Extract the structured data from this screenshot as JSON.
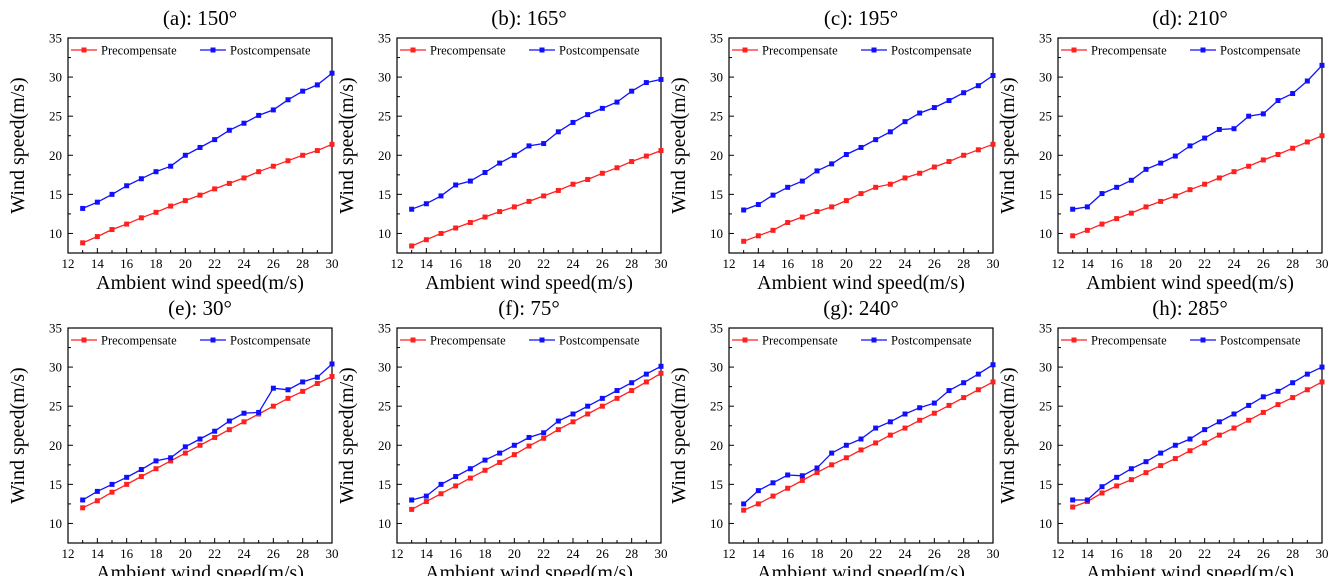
{
  "figure": {
    "colors": {
      "pre": "#ff2020",
      "post": "#1010ff",
      "axis": "#000000",
      "background": "#ffffff"
    }
  },
  "chart_data": [
    {
      "type": "line",
      "title": "(a): 150°",
      "xlabel": "Ambient wind speed(m/s)",
      "ylabel": "Wind speed(m/s)",
      "xlim": [
        12,
        30
      ],
      "ylim": [
        7.5,
        35
      ],
      "xticks": [
        12,
        14,
        16,
        18,
        20,
        22,
        24,
        26,
        28,
        30
      ],
      "yticks": [
        10,
        15,
        20,
        25,
        30,
        35
      ],
      "legend": "top",
      "x": [
        13,
        14,
        15,
        16,
        17,
        18,
        19,
        20,
        21,
        22,
        23,
        24,
        25,
        26,
        27,
        28,
        29,
        30
      ],
      "series": [
        {
          "name": "Precompensate",
          "color": "#ff2020",
          "values": [
            8.8,
            9.6,
            10.5,
            11.2,
            12,
            12.7,
            13.5,
            14.2,
            14.9,
            15.7,
            16.4,
            17.1,
            17.9,
            18.6,
            19.3,
            20,
            20.6,
            21.4
          ]
        },
        {
          "name": "Postcompensate",
          "color": "#1010ff",
          "values": [
            13.2,
            14,
            15,
            16.1,
            17,
            17.9,
            18.6,
            20,
            21,
            22,
            23.2,
            24.1,
            25.1,
            25.8,
            27.1,
            28.2,
            29,
            30.5
          ]
        }
      ]
    },
    {
      "type": "line",
      "title": "(b): 165°",
      "xlabel": "Ambient wind speed(m/s)",
      "ylabel": "Wind speed(m/s)",
      "xlim": [
        12,
        30
      ],
      "ylim": [
        7.5,
        35
      ],
      "xticks": [
        12,
        14,
        16,
        18,
        20,
        22,
        24,
        26,
        28,
        30
      ],
      "yticks": [
        10,
        15,
        20,
        25,
        30,
        35
      ],
      "legend": "top",
      "x": [
        13,
        14,
        15,
        16,
        17,
        18,
        19,
        20,
        21,
        22,
        23,
        24,
        25,
        26,
        27,
        28,
        29,
        30
      ],
      "series": [
        {
          "name": "Precompensate",
          "color": "#ff2020",
          "values": [
            8.4,
            9.2,
            10,
            10.7,
            11.4,
            12.1,
            12.8,
            13.4,
            14.1,
            14.8,
            15.5,
            16.3,
            16.9,
            17.7,
            18.4,
            19.2,
            19.9,
            20.6
          ]
        },
        {
          "name": "Postcompensate",
          "color": "#1010ff",
          "values": [
            13.1,
            13.8,
            14.8,
            16.2,
            16.7,
            17.8,
            19,
            20,
            21.2,
            21.5,
            23,
            24.2,
            25.2,
            26,
            26.8,
            28.2,
            29.3,
            29.7
          ]
        }
      ]
    },
    {
      "type": "line",
      "title": "(c): 195°",
      "xlabel": "Ambient wind speed(m/s)",
      "ylabel": "Wind speed(m/s)",
      "xlim": [
        12,
        30
      ],
      "ylim": [
        7.5,
        35
      ],
      "xticks": [
        12,
        14,
        16,
        18,
        20,
        22,
        24,
        26,
        28,
        30
      ],
      "yticks": [
        10,
        15,
        20,
        25,
        30,
        35
      ],
      "legend": "top",
      "x": [
        13,
        14,
        15,
        16,
        17,
        18,
        19,
        20,
        21,
        22,
        23,
        24,
        25,
        26,
        27,
        28,
        29,
        30
      ],
      "series": [
        {
          "name": "Precompensate",
          "color": "#ff2020",
          "values": [
            9,
            9.7,
            10.4,
            11.4,
            12.1,
            12.8,
            13.4,
            14.2,
            15.1,
            15.9,
            16.3,
            17.1,
            17.7,
            18.5,
            19.2,
            20,
            20.7,
            21.4
          ]
        },
        {
          "name": "Postcompensate",
          "color": "#1010ff",
          "values": [
            13,
            13.7,
            14.9,
            15.9,
            16.7,
            18,
            18.9,
            20.1,
            21,
            22,
            23,
            24.3,
            25.4,
            26.1,
            27,
            28,
            28.9,
            30.2
          ]
        }
      ]
    },
    {
      "type": "line",
      "title": "(d): 210°",
      "xlabel": "Ambient wind speed(m/s)",
      "ylabel": "Wind speed(m/s)",
      "xlim": [
        12,
        30
      ],
      "ylim": [
        7.5,
        35
      ],
      "xticks": [
        12,
        14,
        16,
        18,
        20,
        22,
        24,
        26,
        28,
        30
      ],
      "yticks": [
        10,
        15,
        20,
        25,
        30,
        35
      ],
      "legend": "top",
      "x": [
        13,
        14,
        15,
        16,
        17,
        18,
        19,
        20,
        21,
        22,
        23,
        24,
        25,
        26,
        27,
        28,
        29,
        30
      ],
      "series": [
        {
          "name": "Precompensate",
          "color": "#ff2020",
          "values": [
            9.7,
            10.4,
            11.2,
            11.9,
            12.6,
            13.4,
            14.1,
            14.8,
            15.6,
            16.3,
            17.1,
            17.9,
            18.6,
            19.4,
            20.1,
            20.9,
            21.7,
            22.5
          ]
        },
        {
          "name": "Postcompensate",
          "color": "#1010ff",
          "values": [
            13.1,
            13.4,
            15.1,
            15.9,
            16.8,
            18.2,
            19,
            19.9,
            21.2,
            22.2,
            23.3,
            23.4,
            25,
            25.3,
            27,
            27.9,
            29.5,
            31.5
          ]
        }
      ]
    },
    {
      "type": "line",
      "title": "(e): 30°",
      "xlabel": "Ambient wind speed(m/s)",
      "ylabel": "Wind speed(m/s)",
      "xlim": [
        12,
        30
      ],
      "ylim": [
        7.5,
        35
      ],
      "xticks": [
        12,
        14,
        16,
        18,
        20,
        22,
        24,
        26,
        28,
        30
      ],
      "yticks": [
        10,
        15,
        20,
        25,
        30,
        35
      ],
      "legend": "top",
      "x": [
        13,
        14,
        15,
        16,
        17,
        18,
        19,
        20,
        21,
        22,
        23,
        24,
        25,
        26,
        27,
        28,
        29,
        30
      ],
      "series": [
        {
          "name": "Precompensate",
          "color": "#ff2020",
          "values": [
            12,
            12.9,
            14,
            15,
            16,
            17,
            18,
            19,
            20,
            21,
            22,
            23,
            24,
            25,
            26,
            26.9,
            27.9,
            28.8
          ]
        },
        {
          "name": "Postcompensate",
          "color": "#1010ff",
          "values": [
            13,
            14.1,
            15,
            15.9,
            16.9,
            18,
            18.4,
            19.8,
            20.8,
            21.8,
            23.1,
            24.1,
            24.2,
            27.3,
            27.1,
            28.1,
            28.7,
            30.4
          ]
        }
      ]
    },
    {
      "type": "line",
      "title": "(f): 75°",
      "xlabel": "Ambient wind speed(m/s)",
      "ylabel": "Wind speed(m/s)",
      "xlim": [
        12,
        30
      ],
      "ylim": [
        7.5,
        35
      ],
      "xticks": [
        12,
        14,
        16,
        18,
        20,
        22,
        24,
        26,
        28,
        30
      ],
      "yticks": [
        10,
        15,
        20,
        25,
        30,
        35
      ],
      "legend": "top",
      "x": [
        13,
        14,
        15,
        16,
        17,
        18,
        19,
        20,
        21,
        22,
        23,
        24,
        25,
        26,
        27,
        28,
        29,
        30
      ],
      "series": [
        {
          "name": "Precompensate",
          "color": "#ff2020",
          "values": [
            11.8,
            12.8,
            13.8,
            14.8,
            15.8,
            16.8,
            17.8,
            18.8,
            19.9,
            20.9,
            22,
            23,
            24,
            25,
            26,
            27,
            28.1,
            29.2
          ]
        },
        {
          "name": "Postcompensate",
          "color": "#1010ff",
          "values": [
            13,
            13.5,
            15,
            16,
            17,
            18.1,
            19,
            20,
            21,
            21.6,
            23.1,
            24,
            25,
            26,
            27,
            28,
            29.1,
            30.1
          ]
        }
      ]
    },
    {
      "type": "line",
      "title": "(g): 240°",
      "xlabel": "Ambient wind speed(m/s)",
      "ylabel": "Wind speed(m/s)",
      "xlim": [
        12,
        30
      ],
      "ylim": [
        7.5,
        35
      ],
      "xticks": [
        12,
        14,
        16,
        18,
        20,
        22,
        24,
        26,
        28,
        30
      ],
      "yticks": [
        10,
        15,
        20,
        25,
        30,
        35
      ],
      "legend": "top",
      "x": [
        13,
        14,
        15,
        16,
        17,
        18,
        19,
        20,
        21,
        22,
        23,
        24,
        25,
        26,
        27,
        28,
        29,
        30
      ],
      "series": [
        {
          "name": "Precompensate",
          "color": "#ff2020",
          "values": [
            11.7,
            12.5,
            13.5,
            14.5,
            15.5,
            16.5,
            17.5,
            18.4,
            19.4,
            20.3,
            21.3,
            22.2,
            23.2,
            24.1,
            25.1,
            26.1,
            27.1,
            28.1
          ]
        },
        {
          "name": "Postcompensate",
          "color": "#1010ff",
          "values": [
            12.5,
            14.2,
            15.2,
            16.2,
            16.1,
            17.1,
            19,
            20,
            20.8,
            22.2,
            23,
            24,
            24.8,
            25.4,
            27,
            28,
            29.1,
            30.3
          ]
        }
      ]
    },
    {
      "type": "line",
      "title": "(h): 285°",
      "xlabel": "Ambient wind speed(m/s)",
      "ylabel": "Wind speed(m/s)",
      "xlim": [
        12,
        30
      ],
      "ylim": [
        7.5,
        35
      ],
      "xticks": [
        12,
        14,
        16,
        18,
        20,
        22,
        24,
        26,
        28,
        30
      ],
      "yticks": [
        10,
        15,
        20,
        25,
        30,
        35
      ],
      "legend": "top",
      "x": [
        13,
        14,
        15,
        16,
        17,
        18,
        19,
        20,
        21,
        22,
        23,
        24,
        25,
        26,
        27,
        28,
        29,
        30
      ],
      "series": [
        {
          "name": "Precompensate",
          "color": "#ff2020",
          "values": [
            12.1,
            12.8,
            13.9,
            14.8,
            15.6,
            16.5,
            17.4,
            18.3,
            19.3,
            20.3,
            21.3,
            22.2,
            23.2,
            24.2,
            25.2,
            26.1,
            27.1,
            28.1
          ]
        },
        {
          "name": "Postcompensate",
          "color": "#1010ff",
          "values": [
            13,
            13,
            14.7,
            15.9,
            17,
            17.9,
            19,
            20,
            20.8,
            22,
            23,
            24,
            25.1,
            26.2,
            26.9,
            28,
            29.1,
            30
          ]
        }
      ]
    }
  ]
}
